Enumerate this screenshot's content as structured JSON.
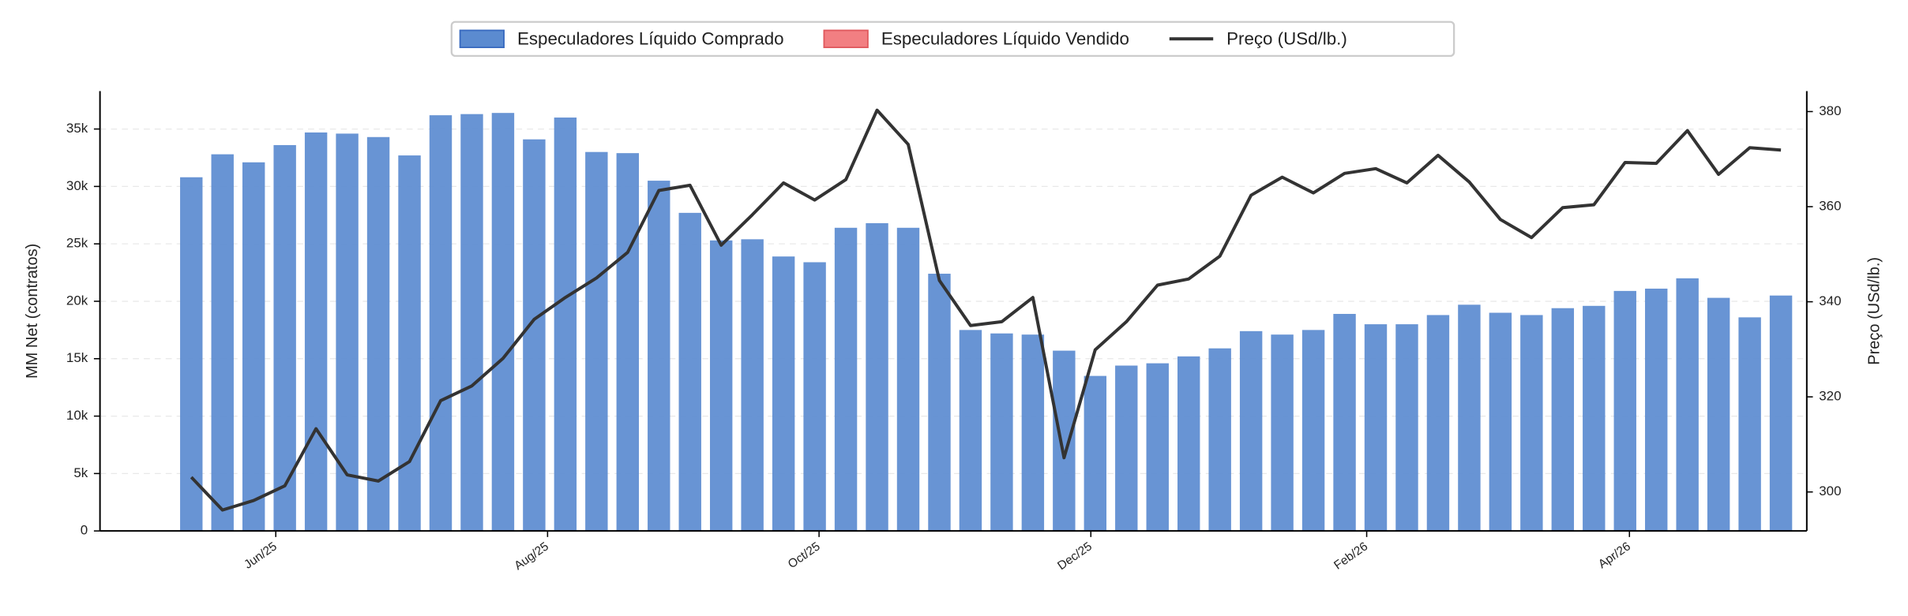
{
  "chart_data": {
    "type": "bar_line",
    "ylabel": "MM Net (contratos)",
    "y2label": "Preço (USd/lb.)",
    "categories": [
      null,
      null,
      null,
      null,
      null,
      null,
      null,
      null,
      null,
      null,
      null,
      null,
      null,
      null,
      null,
      null,
      null,
      null,
      null,
      null,
      null,
      null,
      null,
      null,
      null,
      null,
      null,
      null,
      null,
      null,
      null,
      null,
      null,
      null,
      null,
      null,
      null,
      null,
      null,
      null,
      null,
      null,
      null,
      null,
      null,
      null,
      null,
      null,
      null,
      null,
      null,
      null
    ],
    "xlim": [
      -2.93,
      51.83
    ],
    "xticks": [
      {
        "value": 2.71,
        "label": "Jun/25"
      },
      {
        "value": 11.43,
        "label": "Aug/25"
      },
      {
        "value": 20.14,
        "label": "Oct/25"
      },
      {
        "value": 28.86,
        "label": "Dec/25"
      },
      {
        "value": 37.71,
        "label": "Feb/26"
      },
      {
        "value": 46.14,
        "label": "Apr/26"
      }
    ],
    "ylim": [
      0,
      38300
    ],
    "yticks": [
      0,
      {
        "value": 5000,
        "label": "5k"
      },
      {
        "value": 10000,
        "label": "10k"
      },
      {
        "value": 15000,
        "label": "15k"
      },
      {
        "value": 20000,
        "label": "20k"
      },
      {
        "value": 25000,
        "label": "25k"
      },
      {
        "value": 30000,
        "label": "30k"
      },
      {
        "value": 35000,
        "label": "35k"
      }
    ],
    "y2lim": [
      291.8,
      384.3
    ],
    "y2ticks": [
      300,
      320,
      340,
      360,
      380
    ],
    "grid": true,
    "series": [
      {
        "name": "Especuladores Líquido Comprado",
        "color": "#5b8bd0",
        "kind": "bar",
        "values": [
          30800,
          32800,
          32100,
          33600,
          34700,
          34600,
          34300,
          32700,
          36200,
          36300,
          36400,
          34100,
          36000,
          33000,
          32900,
          30500,
          27700,
          25300,
          25400,
          23900,
          23400,
          26400,
          26800,
          26400,
          22400,
          17500,
          17200,
          17100,
          15700,
          13500,
          14400,
          14600,
          15200,
          15900,
          17400,
          17100,
          17500,
          18900,
          18000,
          18000,
          18800,
          19700,
          19000,
          18800,
          19400,
          19600,
          20900,
          21100,
          22000,
          20300,
          18600,
          20500
        ]
      },
      {
        "name": "Especuladores Líquido Vendido",
        "color": "#f27f82",
        "kind": "bar",
        "values": [
          null,
          null,
          null,
          null,
          null,
          null,
          null,
          null,
          null,
          null,
          null,
          null,
          null,
          null,
          null,
          null,
          null,
          null,
          null,
          null,
          null,
          null,
          null,
          null,
          null,
          null,
          null,
          null,
          null,
          null,
          null,
          null,
          null,
          null,
          null,
          null,
          null,
          null,
          null,
          null,
          null,
          null,
          null,
          null,
          null,
          null,
          null,
          null,
          null,
          null,
          null,
          null
        ]
      },
      {
        "name": "Preço (USd/lb.)",
        "color": "#333333",
        "kind": "line",
        "axis": "y2",
        "values": [
          303.1,
          296.2,
          298.2,
          301.3,
          313.3,
          303.6,
          302.3,
          306.4,
          319.2,
          322.3,
          328.1,
          336.3,
          340.9,
          345.0,
          350.4,
          363.4,
          364.5,
          351.9,
          358.3,
          365.0,
          361.4,
          365.7,
          380.3,
          373.1,
          344.5,
          335.0,
          335.8,
          340.9,
          307.2,
          329.9,
          335.8,
          343.5,
          344.8,
          349.6,
          362.4,
          366.2,
          362.9,
          367.0,
          368.0,
          365.0,
          370.8,
          365.2,
          357.3,
          353.5,
          359.8,
          360.4,
          369.3,
          369.1,
          376.0,
          366.8,
          372.4,
          371.9
        ]
      }
    ]
  }
}
